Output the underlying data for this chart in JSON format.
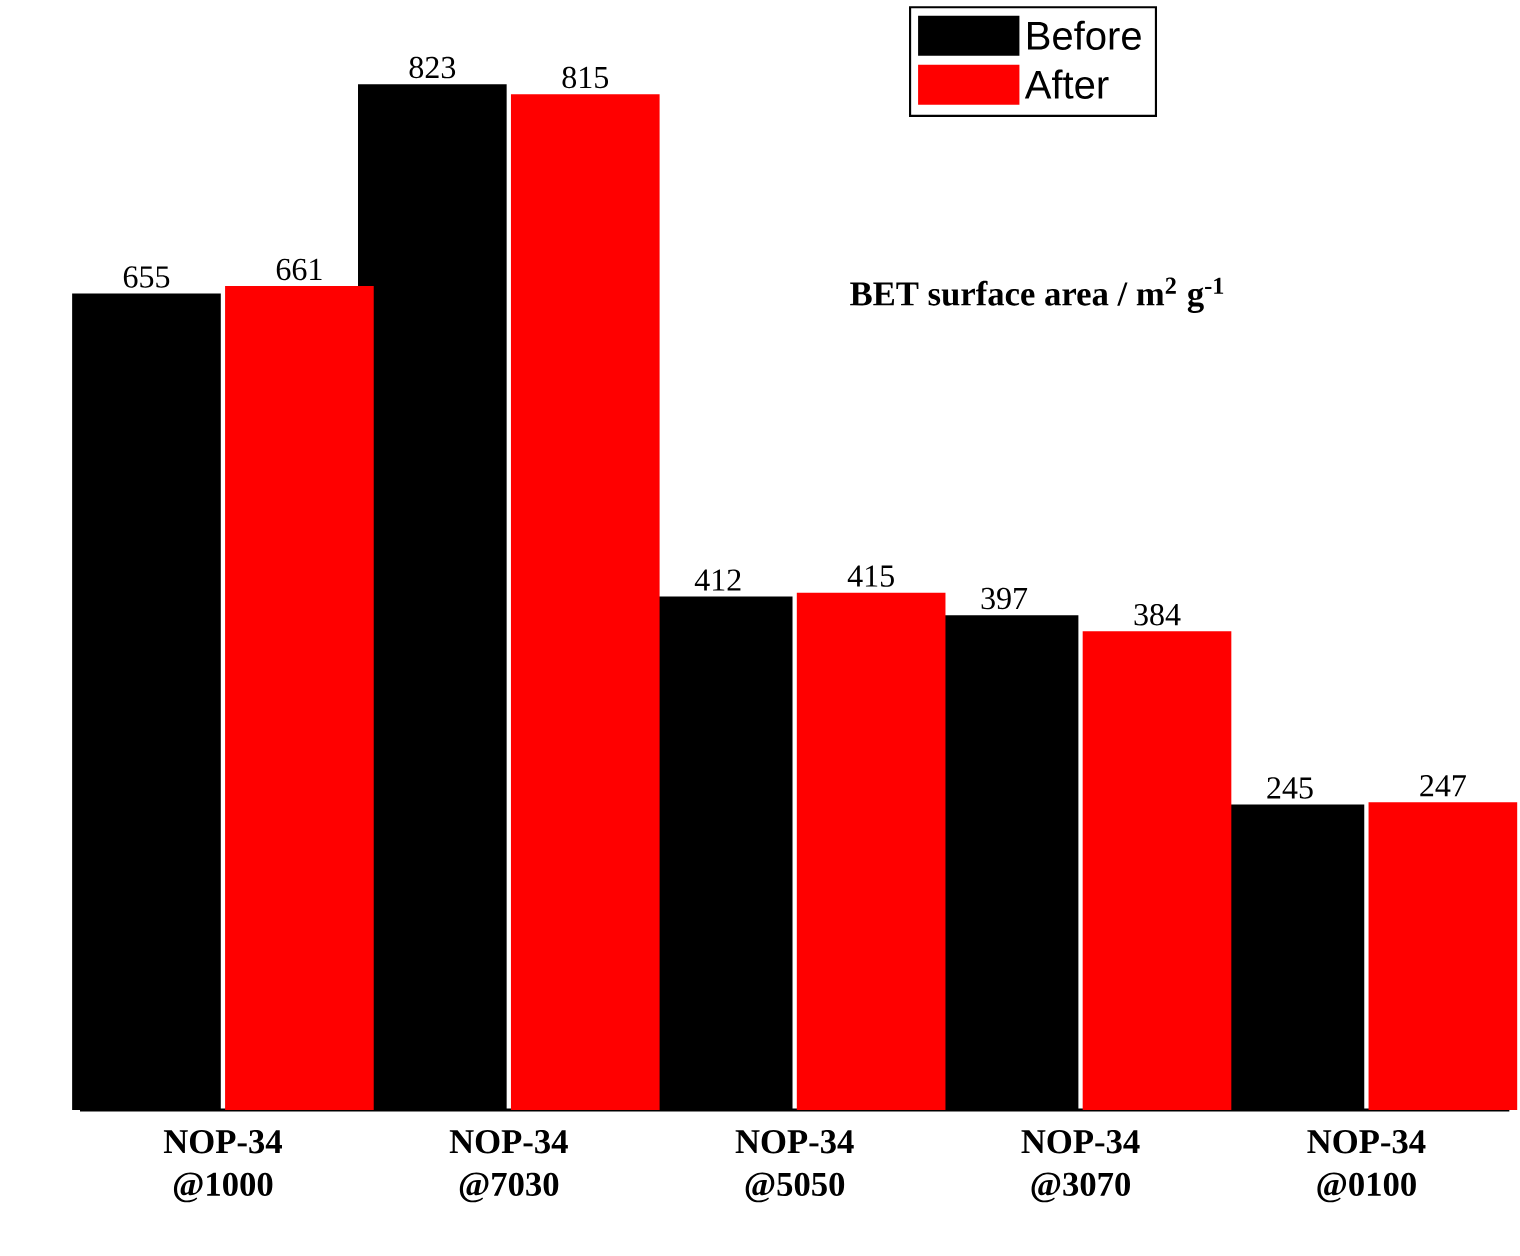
{
  "chart_data": {
    "type": "bar",
    "title": "**BET surface area / m$^{2}$ g$^{-1}$**",
    "categories": [
      "NOP-34 @1000",
      "NOP-34 @7030",
      "NOP-34 @5050",
      "NOP-34 @3070",
      "NOP-34 @0100"
    ],
    "series": [
      {
        "name": "Before",
        "color": "#000000",
        "values": [
          655,
          823,
          412,
          397,
          245
        ]
      },
      {
        "name": "After",
        "color": "#ff0000",
        "values": [
          661,
          815,
          415,
          384,
          247
        ]
      }
    ],
    "ylim": [
      0,
      890
    ],
    "data_labels": true,
    "legend": "top right",
    "tick_labels": "x",
    "grid": false
  }
}
